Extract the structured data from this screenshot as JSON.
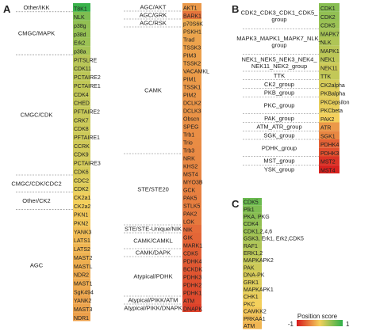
{
  "chart_data": [
    {
      "type": "heatmap",
      "panel_label": "A",
      "columns": [
        {
          "rows": [
            "T8K1",
            "NLK",
            "p38g",
            "p38d",
            "Erk2",
            "p38a",
            "PITSLRE",
            "CDK11",
            "PCTAIRE2",
            "PCTAIRE1",
            "CDK4",
            "CHED",
            "PFTAIRE2",
            "CRK7",
            "CDK8",
            "PFTAIRE1",
            "CCRK",
            "CDK9",
            "PCTAIRE3",
            "CDK6",
            "CDC2",
            "CDK2",
            "CK2a1",
            "CK2a2",
            "PKN1",
            "PKN2",
            "YANK3",
            "LATS1",
            "LATS2",
            "MAST2",
            "MASTL",
            "NDR2",
            "MAST1",
            "SgK494",
            "YANK2",
            "MAST3",
            "NDR1"
          ],
          "scores": [
            0.95,
            0.6,
            0.5,
            0.48,
            0.45,
            0.4,
            0.3,
            0.3,
            0.28,
            0.26,
            0.25,
            0.24,
            0.23,
            0.22,
            0.2,
            0.2,
            0.18,
            0.18,
            0.16,
            0.15,
            0.12,
            0.1,
            0.02,
            0.0,
            -0.05,
            -0.05,
            -0.1,
            -0.12,
            -0.14,
            -0.16,
            -0.18,
            -0.2,
            -0.2,
            -0.22,
            -0.24,
            -0.24,
            -0.26
          ],
          "groups": [
            {
              "label": "Other/IKK",
              "start": 0,
              "end": 0
            },
            {
              "label": "CMGC/MAPK",
              "start": 1,
              "end": 5
            },
            {
              "label": "CMGC/CDK",
              "start": 6,
              "end": 19
            },
            {
              "label": "CMGC/CDK/CDC2",
              "start": 20,
              "end": 21
            },
            {
              "label": "Other/CK2",
              "start": 22,
              "end": 23
            },
            {
              "label": "AGC",
              "start": 24,
              "end": 36
            }
          ]
        },
        {
          "rows": [
            "AKT1",
            "BARK1",
            "p70S6K",
            "PSKH1",
            "Trad",
            "TSSK3",
            "PIM3",
            "TSSK2",
            "VACAMKL",
            "PIM1",
            "TSSK1",
            "PIM2",
            "DCLK2",
            "DCLK3",
            "Obscn",
            "SPEG",
            "Trb1",
            "Trio",
            "Trb3",
            "NRK",
            "KHS2",
            "MST4",
            "MYO3B",
            "GCK",
            "PAK5",
            "STLK5",
            "PAK2",
            "LOK",
            "NIK",
            "GIK",
            "MARK1",
            "CDK5",
            "PDHK4",
            "BCKDK",
            "PDHK3",
            "PDHK2",
            "PDHK1",
            "ATM",
            "DNAPK"
          ],
          "scores": [
            -0.3,
            -0.5,
            -0.2,
            -0.22,
            -0.24,
            -0.25,
            -0.26,
            -0.27,
            -0.28,
            -0.29,
            -0.3,
            -0.31,
            -0.32,
            -0.33,
            -0.34,
            -0.35,
            -0.36,
            -0.37,
            -0.38,
            -0.39,
            -0.4,
            -0.41,
            -0.42,
            -0.43,
            -0.44,
            -0.45,
            -0.47,
            -0.48,
            -0.55,
            -0.58,
            -0.6,
            -0.62,
            -0.64,
            -0.66,
            -0.68,
            -0.7,
            -0.72,
            -0.74,
            -0.78
          ],
          "groups": [
            {
              "label": "AGC/AKT",
              "start": 0,
              "end": 0
            },
            {
              "label": "AGC/GRK",
              "start": 1,
              "end": 1
            },
            {
              "label": "AGC/RSK",
              "start": 2,
              "end": 2
            },
            {
              "label": "CAMK",
              "start": 3,
              "end": 18
            },
            {
              "label": "STE/STE20",
              "start": 19,
              "end": 27
            },
            {
              "label": "STE/STE-Unique/NIK",
              "start": 28,
              "end": 28
            },
            {
              "label": "CAMK/CAMKL",
              "start": 29,
              "end": 30
            },
            {
              "label": "CAMK/DAPK",
              "start": 31,
              "end": 31
            },
            {
              "label": "Atypical/PDHK",
              "start": 32,
              "end": 36
            },
            {
              "label": "Atypical/PIKK/ATM",
              "start": 37,
              "end": 37
            },
            {
              "label": "Atypical/PIKK/DNAPK",
              "start": 38,
              "end": 38
            }
          ]
        }
      ]
    },
    {
      "type": "heatmap",
      "panel_label": "B",
      "rows": [
        "CDK1",
        "CDK2",
        "CDK5",
        "MAPK7",
        "NLK",
        "MAPK1",
        "NEK1",
        "NEK11",
        "TTK",
        "CK2alpha",
        "PKBalpha",
        "PKCepsilon",
        "PKCbeta",
        "PAK2",
        "ATR",
        "SGK1",
        "PDHK4",
        "PDHK3",
        "MST2",
        "MST4"
      ],
      "scores": [
        0.55,
        0.5,
        0.45,
        0.4,
        0.35,
        0.3,
        0.28,
        0.2,
        0.25,
        0.15,
        0.1,
        0.08,
        0.06,
        0.0,
        -0.3,
        -0.4,
        -0.6,
        -0.7,
        -0.85,
        -0.95
      ],
      "groups": [
        {
          "label": "CDK2_CDK3_CDK1_CDK5_group",
          "start": 0,
          "end": 2
        },
        {
          "label": "MAPK3_MAPK1_MAPK7_NLK_group",
          "start": 3,
          "end": 5
        },
        {
          "label": "NEK1_NEK5_NEK3_NEK4_NEK11_NEK2_group",
          "start": 6,
          "end": 7
        },
        {
          "label": "TTK",
          "start": 8,
          "end": 8
        },
        {
          "label": "CK2_group",
          "start": 9,
          "end": 9
        },
        {
          "label": "PKB_group",
          "start": 10,
          "end": 10
        },
        {
          "label": "PKC_group",
          "start": 11,
          "end": 12
        },
        {
          "label": "PAK_group",
          "start": 13,
          "end": 13
        },
        {
          "label": "ATM_ATR_group",
          "start": 14,
          "end": 14
        },
        {
          "label": "SGK_group",
          "start": 15,
          "end": 15
        },
        {
          "label": "PDHK_group",
          "start": 16,
          "end": 17
        },
        {
          "label": "MST_group",
          "start": 18,
          "end": 18
        },
        {
          "label": "YSK_group",
          "start": 19,
          "end": 19
        }
      ]
    },
    {
      "type": "heatmap",
      "panel_label": "C",
      "rows": [
        "CDK5",
        "Plk1",
        "PKA, PKG",
        "CDK4",
        "CDK1,2,4,6",
        "GSK3, Erk1, Erk2,CDK5",
        "RAF1",
        "ERK1,2",
        "MAPKAPK2",
        "PAK",
        "DNA-PK",
        "GRK1",
        "MAPKAPK1",
        "CHK1",
        "PKC",
        "CAMKK2",
        "PRKAA1",
        "ATM"
      ],
      "scores": [
        0.7,
        0.6,
        0.55,
        0.5,
        0.45,
        0.4,
        0.35,
        0.3,
        0.25,
        0.2,
        0.15,
        0.12,
        0.1,
        0.05,
        0.0,
        -0.05,
        -0.1,
        -0.15
      ]
    }
  ],
  "legend": {
    "title": "Position score",
    "min_label": "-1",
    "max_label": "1",
    "colors": [
      "#d7191c",
      "#f4d05c",
      "#2fb04a"
    ]
  }
}
